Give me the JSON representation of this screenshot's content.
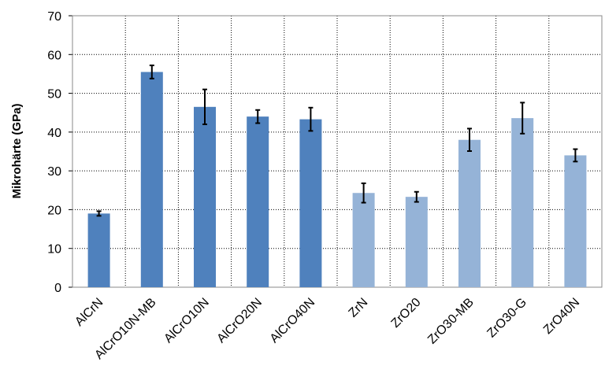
{
  "chart_data": {
    "type": "bar",
    "y_label": "Mikrohärte (GPa)",
    "categories": [
      "AlCrN",
      "AlCrO10N-MB",
      "AlCrO10N",
      "AlCrO20N",
      "AlCrO40N",
      "ZrN",
      "ZrO20",
      "ZrO30-MB",
      "ZrO30-G",
      "ZrO40N"
    ],
    "values": [
      19,
      55.5,
      46.5,
      44,
      43.3,
      24.3,
      23.3,
      38,
      43.6,
      34
    ],
    "errors": [
      0.6,
      1.7,
      4.5,
      1.7,
      3,
      2.5,
      1.3,
      2.9,
      4,
      1.6
    ],
    "colors": [
      "#4f81bd",
      "#4f81bd",
      "#4f81bd",
      "#4f81bd",
      "#4f81bd",
      "#95b3d7",
      "#95b3d7",
      "#95b3d7",
      "#95b3d7",
      "#95b3d7"
    ],
    "ylim": [
      0,
      70
    ],
    "yticks": [
      0,
      10,
      20,
      30,
      40,
      50,
      60,
      70
    ],
    "grid": true
  }
}
